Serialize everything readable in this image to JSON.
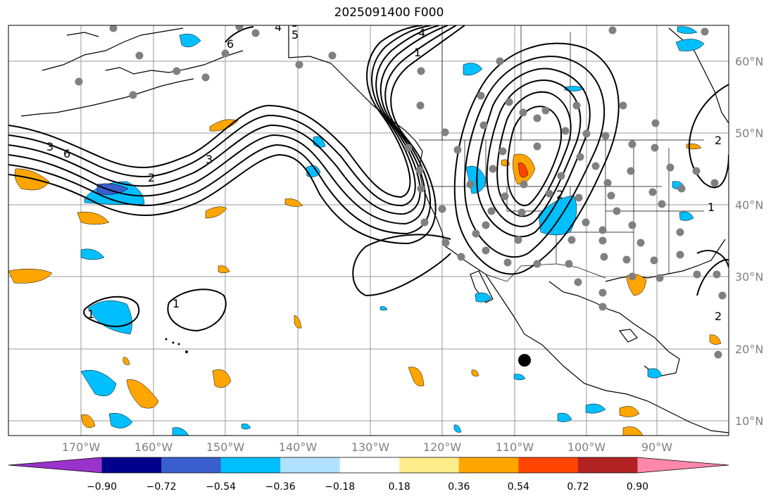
{
  "title": "2025091400 F000",
  "colors": {
    "ocean": "#ffffff",
    "coast": "#000000",
    "grid": "#9a9a9a",
    "station": "#808080",
    "marker": "#000000",
    "contour": "#000000"
  },
  "lat_labels": [
    "60°N",
    "50°N",
    "40°N",
    "30°N",
    "20°N",
    "10°N"
  ],
  "lon_labels": [
    "170°W",
    "160°W",
    "150°W",
    "140°W",
    "130°W",
    "120°W",
    "110°W",
    "100°W",
    "90°W"
  ],
  "contour_labels": [
    "1",
    "2",
    "3",
    "4",
    "5",
    "6",
    "1",
    "2",
    "1",
    "2",
    "3",
    "4",
    "5",
    "6",
    "1",
    "2"
  ],
  "colorbar": {
    "colors": [
      "#9933cc",
      "#00008b",
      "#3a5fcd",
      "#00bfff",
      "#b0e2ff",
      "#ffffff",
      "#ffec8b",
      "#ffa500",
      "#ff4500",
      "#b22222",
      "#ff88aa"
    ],
    "labels": [
      "−0.90",
      "−0.72",
      "−0.54",
      "−0.36",
      "−0.18",
      "0.18",
      "0.36",
      "0.54",
      "0.72",
      "0.90"
    ]
  }
}
